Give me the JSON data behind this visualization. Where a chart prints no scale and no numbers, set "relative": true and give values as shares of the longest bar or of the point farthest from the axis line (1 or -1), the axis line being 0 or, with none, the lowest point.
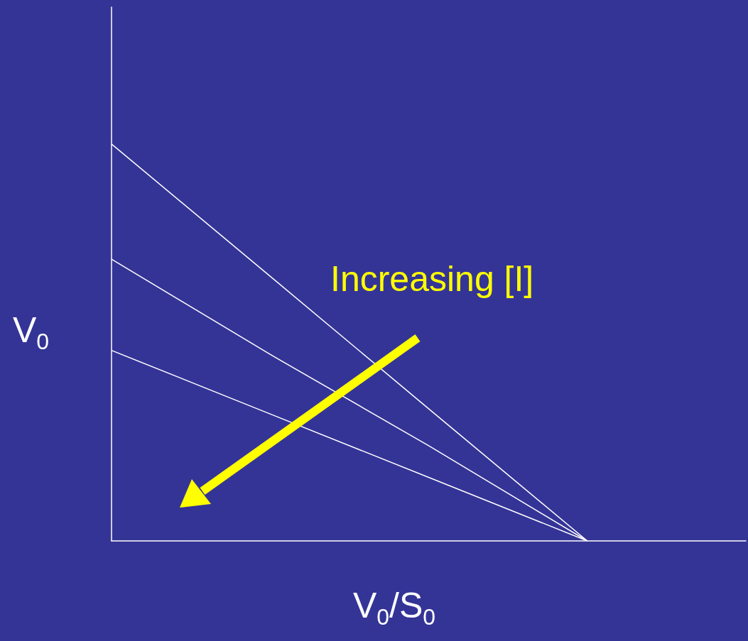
{
  "chart_data": {
    "type": "line",
    "relative": true,
    "xlabel": "V$_{0}$/S$_{0}$",
    "ylabel": "V$_{0}$",
    "categories": [
      null,
      null,
      null,
      null,
      null
    ],
    "series": [
      {
        "color": "#ffffff",
        "values": [
          1,
          0.667,
          0.333,
          0,
          null
        ]
      },
      {
        "color": "#ffffff",
        "values": [
          0.71,
          0.47,
          0.24,
          0,
          null
        ]
      },
      {
        "color": "#ffffff",
        "values": [
          0.48,
          0.32,
          0.16,
          0,
          null
        ]
      }
    ],
    "annotations": [
      "Increasing [I]"
    ]
  }
}
